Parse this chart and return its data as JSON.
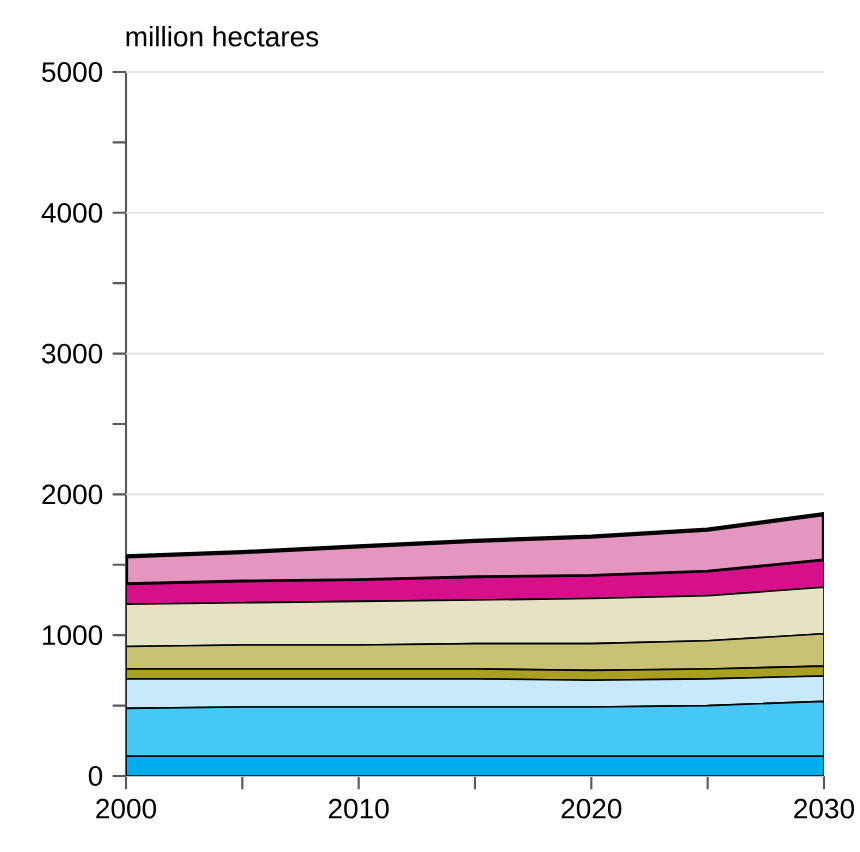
{
  "chart_data": {
    "type": "area",
    "stacked": true,
    "ylabel": "million hectares",
    "x": [
      2000,
      2005,
      2010,
      2015,
      2020,
      2025,
      2030
    ],
    "series": [
      {
        "color": "#00aeef",
        "values": [
          140,
          140,
          140,
          140,
          140,
          140,
          140
        ]
      },
      {
        "color": "#45c8f5",
        "values": [
          340,
          350,
          350,
          350,
          350,
          360,
          390
        ]
      },
      {
        "color": "#c7e9f9",
        "values": [
          210,
          200,
          200,
          200,
          190,
          190,
          180
        ]
      },
      {
        "color": "#a9a022",
        "values": [
          70,
          70,
          70,
          70,
          70,
          70,
          70
        ]
      },
      {
        "color": "#c9c274",
        "values": [
          160,
          170,
          170,
          180,
          190,
          200,
          230
        ]
      },
      {
        "color": "#e6e3c5",
        "values": [
          300,
          300,
          310,
          310,
          320,
          320,
          330
        ]
      },
      {
        "color": "#d5108a",
        "values": [
          140,
          150,
          150,
          160,
          160,
          170,
          190
        ]
      },
      {
        "color": "#e596c0",
        "values": [
          200,
          210,
          240,
          260,
          280,
          300,
          330
        ]
      }
    ],
    "xlim": [
      2000,
      2030
    ],
    "ylim": [
      0,
      5000
    ],
    "xticks": [
      2000,
      {
        "value": 2005,
        "label": null
      },
      2010,
      {
        "value": 2015,
        "label": null
      },
      2020,
      {
        "value": 2025,
        "label": null
      },
      2030
    ],
    "yticks": [
      0,
      {
        "value": 500,
        "label": null
      },
      1000,
      {
        "value": 1500,
        "label": null
      },
      2000,
      {
        "value": 2500,
        "label": null
      },
      3000,
      {
        "value": 3500,
        "label": null
      },
      4000,
      {
        "value": 4500,
        "label": null
      },
      5000
    ],
    "grid": "y"
  }
}
